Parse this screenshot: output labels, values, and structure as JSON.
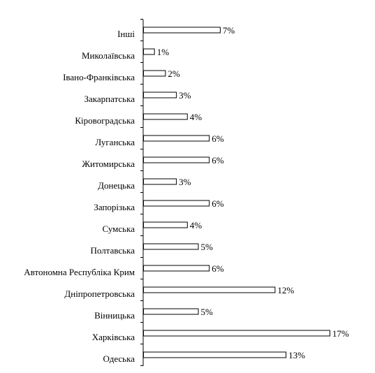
{
  "chart_data": {
    "type": "bar",
    "orientation": "horizontal",
    "title": "",
    "xlabel": "",
    "ylabel": "",
    "grid": false,
    "legend": "none",
    "value_suffix": "%",
    "xlim": [
      0,
      17
    ],
    "categories": [
      "Інші",
      "Миколаївська",
      "Івано-Франківська",
      "Закарпатська",
      "Кіровоградська",
      "Луганська",
      "Житомирська",
      "Донецька",
      "Запорізька",
      "Сумська",
      "Полтавська",
      "Автономна Республіка Крим",
      "Дніпропетровська",
      "Вінницька",
      "Харківська",
      "Одеська"
    ],
    "values": [
      7,
      1,
      2,
      3,
      4,
      6,
      6,
      3,
      6,
      4,
      5,
      6,
      12,
      5,
      17,
      13
    ],
    "data_labels": [
      "7%",
      "1%",
      "2%",
      "3%",
      "4%",
      "6%",
      "6%",
      "3%",
      "6%",
      "4%",
      "5%",
      "6%",
      "12%",
      "5%",
      "17%",
      "13%"
    ],
    "colors": {
      "bar_fill": "#ffffff",
      "bar_stroke": "#000000",
      "axis": "#000000",
      "text": "#000000"
    }
  }
}
